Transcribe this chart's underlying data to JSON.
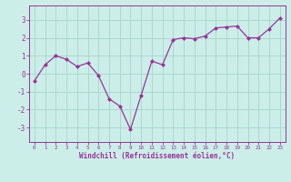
{
  "x": [
    0,
    1,
    2,
    3,
    4,
    5,
    6,
    7,
    8,
    9,
    10,
    11,
    12,
    13,
    14,
    15,
    16,
    17,
    18,
    19,
    20,
    21,
    22,
    23
  ],
  "y": [
    -0.4,
    0.5,
    1.0,
    0.8,
    0.4,
    0.6,
    -0.1,
    -1.4,
    -1.8,
    -3.1,
    -1.2,
    0.7,
    0.5,
    1.9,
    2.0,
    1.95,
    2.1,
    2.55,
    2.6,
    2.65,
    2.0,
    2.0,
    2.5,
    3.1
  ],
  "line_color": "#993399",
  "marker": "D",
  "marker_size": 2,
  "line_width": 0.9,
  "bg_color": "#cceee8",
  "grid_color": "#aad8d0",
  "xlabel": "Windchill (Refroidissement éolien,°C)",
  "xlabel_color": "#993399",
  "tick_color": "#993399",
  "label_color": "#993399",
  "ylim": [
    -3.8,
    3.8
  ],
  "xlim": [
    -0.5,
    23.5
  ],
  "yticks": [
    -3,
    -2,
    -1,
    0,
    1,
    2,
    3
  ],
  "xticks": [
    0,
    1,
    2,
    3,
    4,
    5,
    6,
    7,
    8,
    9,
    10,
    11,
    12,
    13,
    14,
    15,
    16,
    17,
    18,
    19,
    20,
    21,
    22,
    23
  ],
  "xtick_labels": [
    "0",
    "1",
    "2",
    "3",
    "4",
    "5",
    "6",
    "7",
    "8",
    "9",
    "10",
    "11",
    "12",
    "13",
    "14",
    "15",
    "16",
    "17",
    "18",
    "19",
    "20",
    "21",
    "22",
    "23"
  ]
}
